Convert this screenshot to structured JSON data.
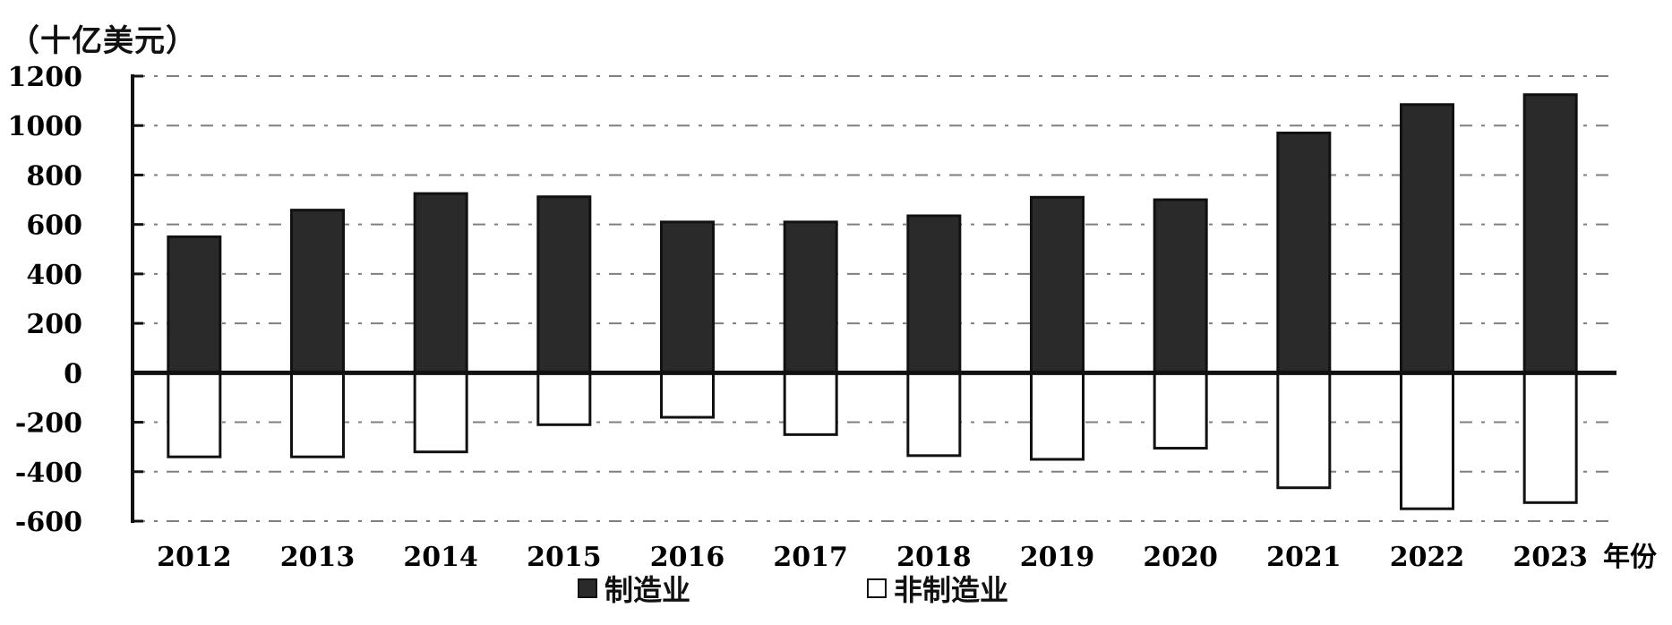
{
  "chart_data": {
    "type": "bar",
    "unit_label": "（十亿美元）",
    "x_axis_end_label": "年份",
    "categories": [
      "2012",
      "2013",
      "2014",
      "2015",
      "2016",
      "2017",
      "2018",
      "2019",
      "2020",
      "2021",
      "2022",
      "2023"
    ],
    "series": [
      {
        "name": "制造业",
        "fill": "#2a2a2a",
        "values": [
          550,
          658,
          725,
          712,
          610,
          610,
          635,
          710,
          700,
          970,
          1085,
          1125
        ]
      },
      {
        "name": "非制造业",
        "fill": "#ffffff",
        "values": [
          -340,
          -340,
          -320,
          -210,
          -180,
          -250,
          -335,
          -350,
          -305,
          -465,
          -550,
          -525
        ]
      }
    ],
    "y_ticks": [
      "1200",
      "1000",
      "800",
      "600",
      "400",
      "200",
      "0",
      "-200",
      "-400",
      "-600"
    ],
    "ylim": [
      -600,
      1200
    ],
    "grid": true
  }
}
